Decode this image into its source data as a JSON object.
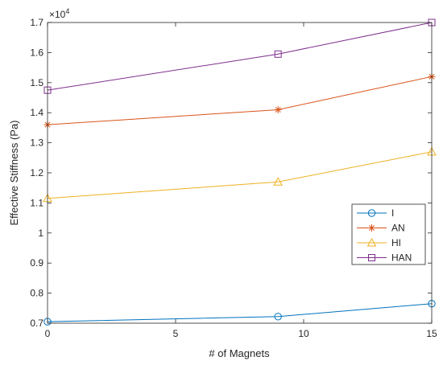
{
  "chart_data": {
    "type": "line",
    "x": [
      0,
      9,
      15
    ],
    "xlim": [
      0,
      15
    ],
    "ylim": [
      0.7,
      1.7
    ],
    "xticks": [
      0,
      5,
      10,
      15
    ],
    "yticks": [
      0.7,
      0.8,
      0.9,
      1.0,
      1.1,
      1.2,
      1.3,
      1.4,
      1.5,
      1.6,
      1.7
    ],
    "xtick_labels": [
      "0",
      "5",
      "10",
      "15"
    ],
    "ytick_labels": [
      "0.7",
      "0.8",
      "0.9",
      "1",
      "1.1",
      "1.2",
      "1.3",
      "1.4",
      "1.5",
      "1.6",
      "1.7"
    ],
    "y_multiplier": "×10",
    "y_multiplier_exp": "4",
    "xlabel": "# of Magnets",
    "ylabel": "Effective Stiffness (Pa)",
    "grid": false,
    "box": true,
    "legend_position": "right",
    "series": [
      {
        "name": "I",
        "values": [
          0.705,
          0.722,
          0.765
        ],
        "color": "#0072BD",
        "marker": "circle"
      },
      {
        "name": "AN",
        "values": [
          1.36,
          1.41,
          1.52
        ],
        "color": "#D95319",
        "marker": "asterisk"
      },
      {
        "name": "HI",
        "values": [
          1.115,
          1.17,
          1.27
        ],
        "color": "#EDB120",
        "marker": "triangle"
      },
      {
        "name": "HAN",
        "values": [
          1.475,
          1.595,
          1.7
        ],
        "color": "#7E2F8E",
        "marker": "square"
      }
    ]
  }
}
